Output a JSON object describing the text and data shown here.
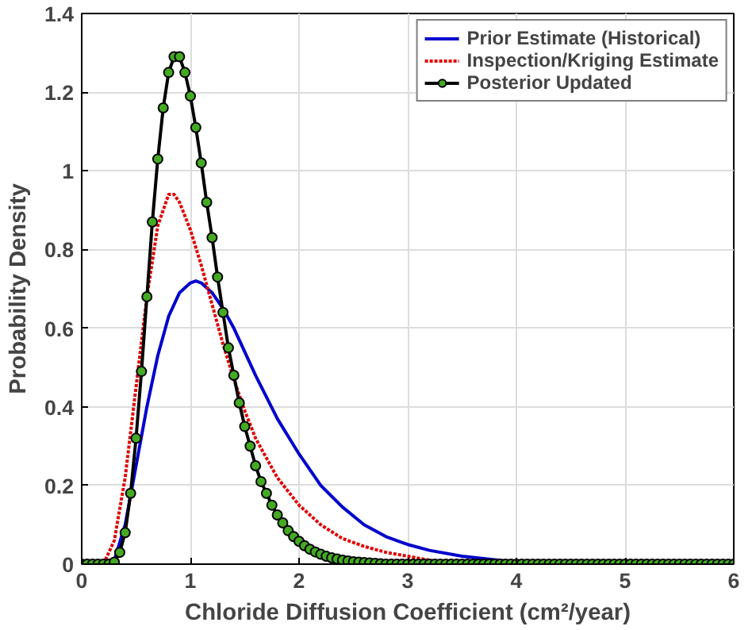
{
  "chart_data": {
    "type": "line",
    "xlabel": "Chloride Diffusion Coefficient (cm²/year)",
    "ylabel": "Probability Density",
    "xlim": [
      0,
      6
    ],
    "ylim": [
      0,
      1.4
    ],
    "xticks": [
      0,
      1,
      2,
      3,
      4,
      5,
      6
    ],
    "yticks": [
      0,
      0.2,
      0.4,
      0.6,
      0.8,
      1,
      1.2,
      1.4
    ],
    "grid": true,
    "legend": "top right",
    "series": [
      {
        "name": "Prior Estimate (Historical)",
        "color": "#0000cc",
        "line_style": "solid",
        "marker": "none",
        "x": [
          0.25,
          0.3,
          0.4,
          0.5,
          0.6,
          0.7,
          0.8,
          0.9,
          1.0,
          1.05,
          1.1,
          1.2,
          1.3,
          1.4,
          1.5,
          1.6,
          1.8,
          2.0,
          2.2,
          2.4,
          2.6,
          2.8,
          3.0,
          3.2,
          3.5,
          4.0,
          4.2
        ],
        "values": [
          0,
          0.01,
          0.1,
          0.25,
          0.4,
          0.53,
          0.63,
          0.69,
          0.715,
          0.72,
          0.715,
          0.69,
          0.65,
          0.6,
          0.54,
          0.48,
          0.37,
          0.28,
          0.2,
          0.145,
          0.1,
          0.07,
          0.05,
          0.035,
          0.02,
          0.005,
          0
        ]
      },
      {
        "name": "Inspection/Kriging Estimate",
        "color": "#e00000",
        "line_style": "dotted",
        "marker": "none",
        "x": [
          0.2,
          0.3,
          0.4,
          0.5,
          0.6,
          0.7,
          0.8,
          0.85,
          0.9,
          1.0,
          1.1,
          1.2,
          1.3,
          1.4,
          1.5,
          1.6,
          1.8,
          2.0,
          2.2,
          2.4,
          2.6,
          2.8,
          3.0,
          3.3,
          3.5
        ],
        "values": [
          0,
          0.06,
          0.22,
          0.45,
          0.68,
          0.86,
          0.94,
          0.94,
          0.92,
          0.85,
          0.76,
          0.66,
          0.56,
          0.47,
          0.39,
          0.32,
          0.22,
          0.15,
          0.1,
          0.065,
          0.045,
          0.03,
          0.02,
          0.005,
          0
        ]
      },
      {
        "name": "Posterior Updated",
        "color": "#000000",
        "line_style": "solid",
        "marker": "circle",
        "x": [
          0,
          0.05,
          0.1,
          0.15,
          0.2,
          0.25,
          0.3,
          0.35,
          0.4,
          0.45,
          0.5,
          0.55,
          0.6,
          0.65,
          0.7,
          0.75,
          0.8,
          0.85,
          0.9,
          0.95,
          1.0,
          1.05,
          1.1,
          1.15,
          1.2,
          1.25,
          1.3,
          1.35,
          1.4,
          1.45,
          1.5,
          1.55,
          1.6,
          1.65,
          1.7,
          1.75,
          1.8,
          1.85,
          1.9,
          1.95,
          2.0,
          2.05,
          2.1,
          2.15,
          2.2,
          2.25,
          2.3,
          2.35,
          2.4,
          2.45,
          2.5,
          2.55,
          2.6,
          2.65,
          2.7,
          2.75,
          2.8,
          2.85,
          2.9,
          2.95,
          3.0,
          3.05,
          3.1,
          3.15,
          3.2,
          3.25,
          3.3,
          3.35,
          3.4,
          3.45,
          3.5,
          3.55,
          3.6,
          3.65,
          3.7,
          3.75,
          3.8,
          3.85,
          3.9,
          3.95,
          4.0,
          4.05,
          4.1,
          4.15,
          4.2,
          4.25,
          4.3,
          4.35,
          4.4,
          4.45,
          4.5,
          4.55,
          4.6,
          4.65,
          4.7,
          4.75,
          4.8,
          4.85,
          4.9,
          4.95,
          5.0,
          5.05,
          5.1,
          5.15,
          5.2,
          5.25,
          5.3,
          5.35,
          5.4,
          5.45,
          5.5,
          5.55,
          5.6,
          5.65,
          5.7,
          5.75,
          5.8,
          5.85,
          5.9,
          5.95,
          6.0
        ],
        "values": [
          0,
          0,
          0,
          0,
          0,
          0,
          0.005,
          0.03,
          0.08,
          0.18,
          0.32,
          0.49,
          0.68,
          0.87,
          1.03,
          1.16,
          1.25,
          1.29,
          1.29,
          1.25,
          1.19,
          1.11,
          1.02,
          0.92,
          0.83,
          0.73,
          0.64,
          0.55,
          0.48,
          0.41,
          0.35,
          0.3,
          0.25,
          0.21,
          0.18,
          0.15,
          0.125,
          0.105,
          0.085,
          0.07,
          0.058,
          0.047,
          0.038,
          0.031,
          0.025,
          0.02,
          0.016,
          0.013,
          0.01,
          0.008,
          0.006,
          0.005,
          0.004,
          0.003,
          0.002,
          0.001,
          0,
          0,
          0,
          0,
          0,
          0,
          0,
          0,
          0,
          0,
          0,
          0,
          0,
          0,
          0,
          0,
          0,
          0,
          0,
          0,
          0,
          0,
          0,
          0,
          0,
          0,
          0,
          0,
          0,
          0,
          0,
          0,
          0,
          0,
          0,
          0,
          0,
          0,
          0,
          0,
          0,
          0,
          0,
          0,
          0,
          0,
          0,
          0,
          0,
          0,
          0,
          0,
          0,
          0,
          0,
          0,
          0,
          0,
          0,
          0,
          0,
          0,
          0,
          0,
          0
        ]
      }
    ]
  }
}
